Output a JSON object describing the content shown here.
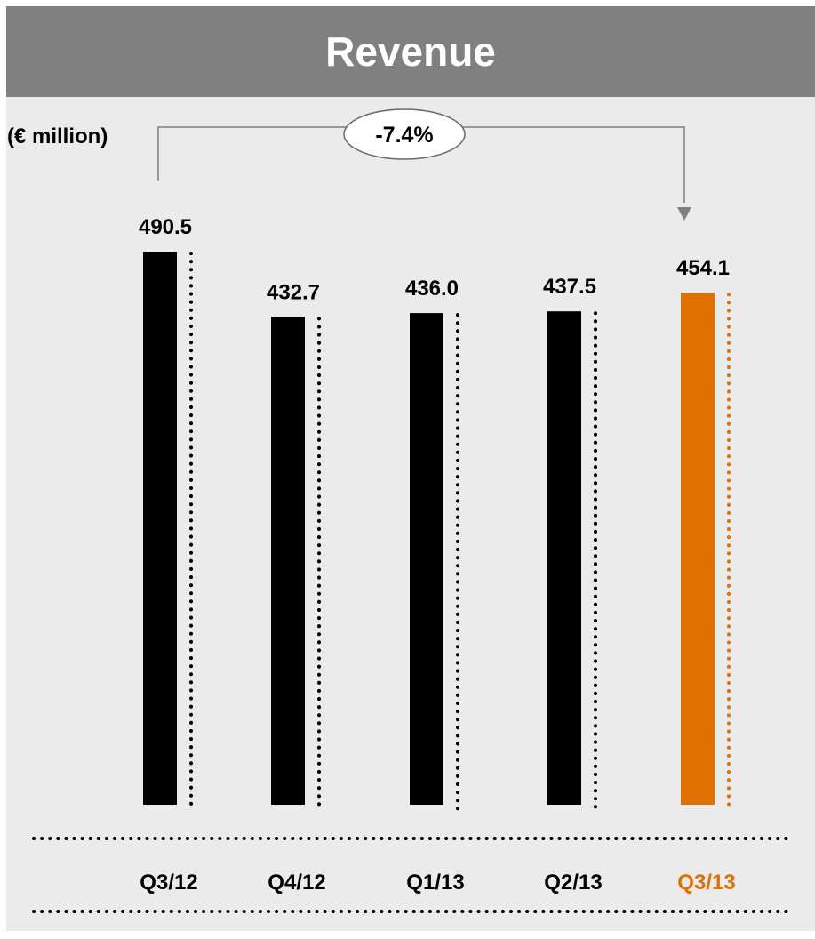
{
  "header": {
    "title": "Revenue"
  },
  "unit": "(€ million)",
  "change_badge": "-7.4%",
  "colors": {
    "bar_default": "#000000",
    "bar_highlight": "#e07000",
    "header_bg": "#808080",
    "panel_bg": "#ebebeb",
    "connector": "#808080"
  },
  "chart_data": {
    "type": "bar",
    "title": "Revenue",
    "ylabel": "(€ million)",
    "categories": [
      "Q3/12",
      "Q4/12",
      "Q1/13",
      "Q2/13",
      "Q3/13"
    ],
    "values": [
      490.5,
      432.7,
      436.0,
      437.5,
      454.1
    ],
    "value_labels": [
      "490.5",
      "432.7",
      "436.0",
      "437.5",
      "454.1"
    ],
    "highlight": "Q3/13",
    "annotation": {
      "from": "Q3/12",
      "to": "Q3/13",
      "label": "-7.4%"
    },
    "grid": false,
    "legend": "none"
  }
}
